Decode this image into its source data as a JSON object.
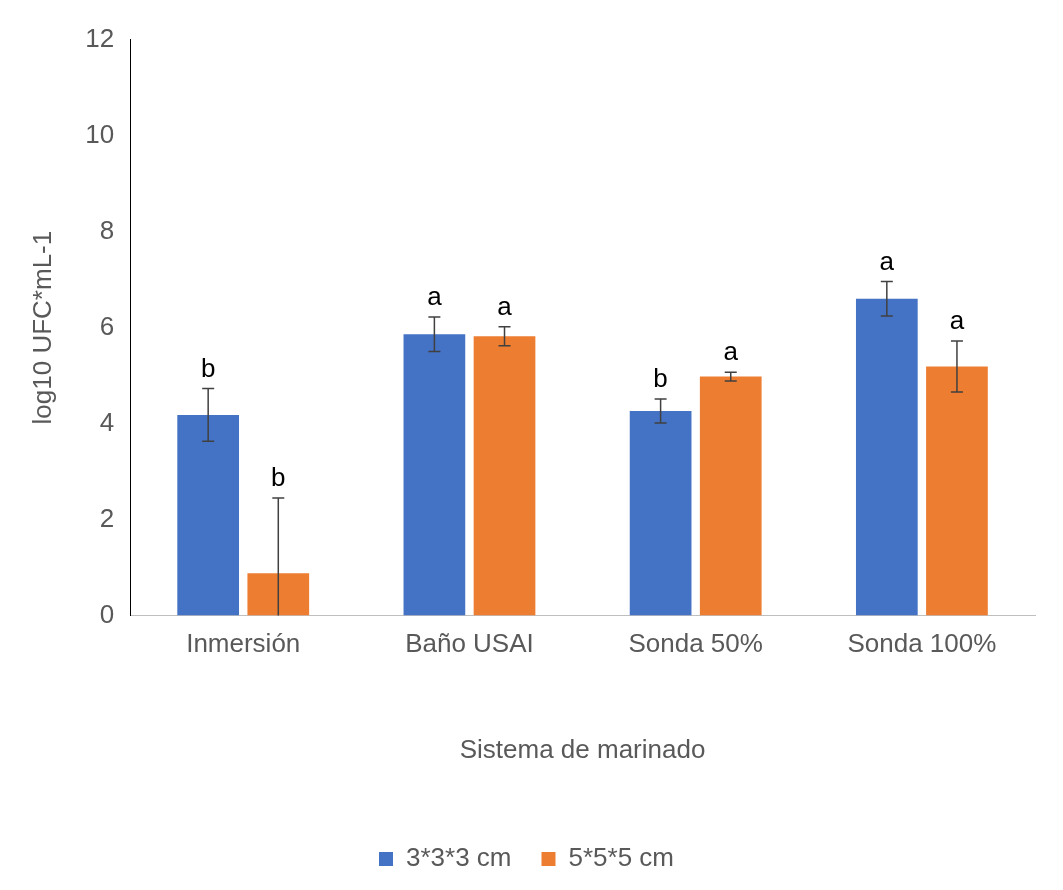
{
  "chart_data": {
    "type": "bar",
    "xlabel": "Sistema de marinado",
    "ylabel": "log10 UFC*mL-1",
    "categories": [
      "Inmersión",
      "Baño USAI",
      "Sonda 50%",
      "Sonda 100%"
    ],
    "series": [
      {
        "name": "3*3*3 cm",
        "color": "#4472c4",
        "values": [
          4.18,
          5.86,
          4.26,
          6.6
        ],
        "errors": [
          0.55,
          0.36,
          0.25,
          0.36
        ],
        "value_labels": [
          "b",
          "a",
          "b",
          "a"
        ]
      },
      {
        "name": "5*5*5 cm",
        "color": "#ed7d31",
        "values": [
          0.88,
          5.82,
          4.98,
          5.19
        ],
        "errors": [
          [
            0,
            2.45
          ],
          0.2,
          0.09,
          0.53
        ],
        "value_labels": [
          "b",
          "a",
          "a",
          "a"
        ]
      }
    ],
    "ylim": [
      0,
      12
    ],
    "yticks": [
      0,
      2,
      4,
      6,
      8,
      10,
      12
    ],
    "grid": false,
    "legend": "bottom"
  }
}
